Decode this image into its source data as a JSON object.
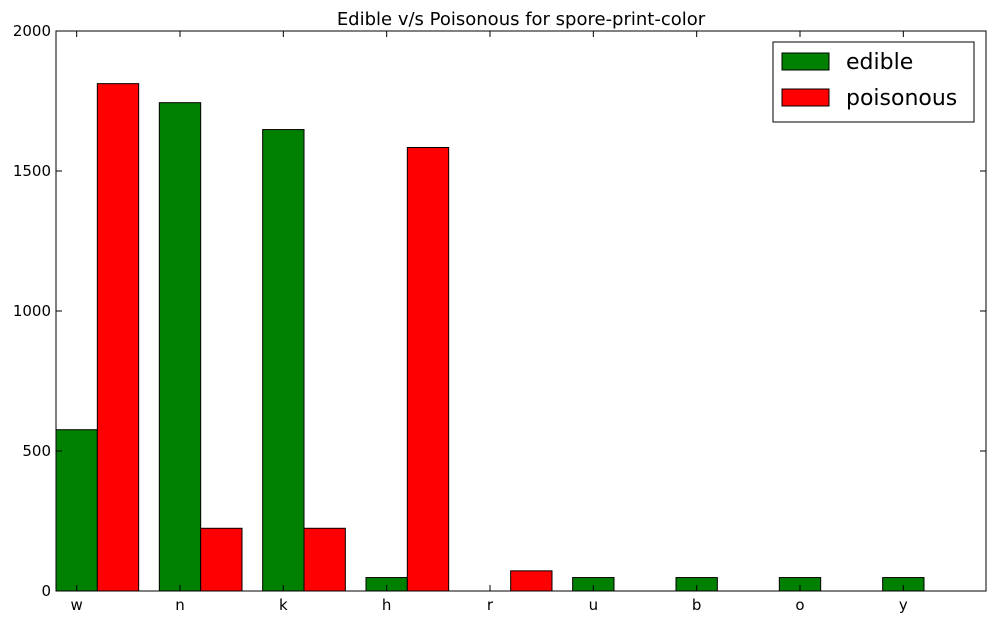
{
  "chart_data": {
    "type": "bar",
    "title": "Edible v/s Poisonous for spore-print-color",
    "xlabel": "",
    "ylabel": "",
    "categories": [
      "w",
      "n",
      "k",
      "h",
      "r",
      "u",
      "b",
      "o",
      "y"
    ],
    "series": [
      {
        "name": "edible",
        "color": "#008000",
        "values": [
          576,
          1744,
          1648,
          48,
          0,
          48,
          48,
          48,
          48
        ]
      },
      {
        "name": "poisonous",
        "color": "#ff0000",
        "values": [
          1812,
          224,
          224,
          1584,
          72,
          0,
          0,
          0,
          0
        ]
      }
    ],
    "ylim": [
      0,
      2000
    ],
    "yticks": [
      0,
      500,
      1000,
      1500,
      2000
    ],
    "legend": "top-right",
    "grid": false
  }
}
